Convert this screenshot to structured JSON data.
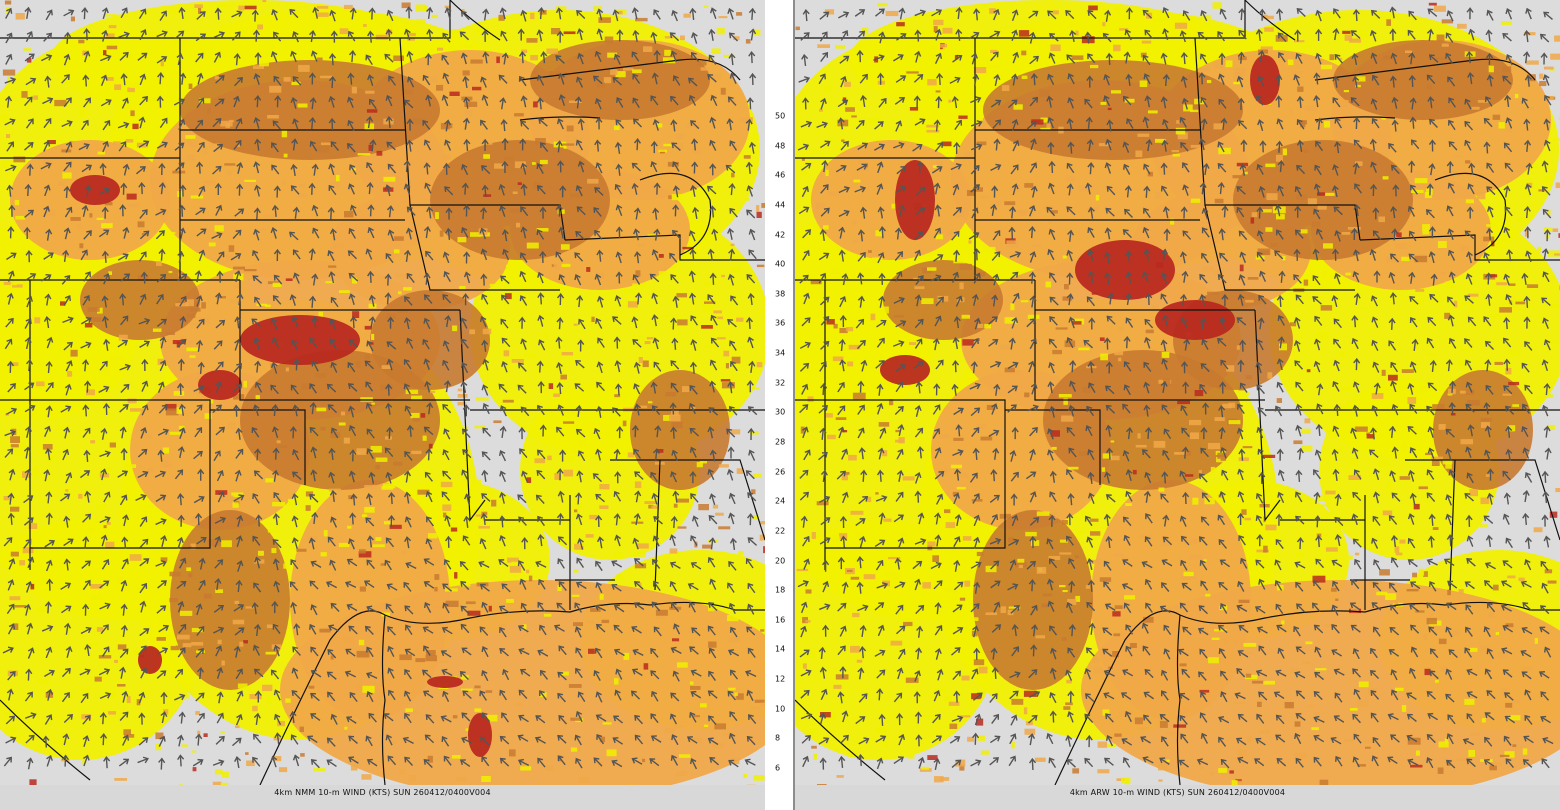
{
  "panels": [
    {
      "id": "nmm",
      "caption": "4km NMM 10-m WIND (KTS) SUN 260412/0400V004"
    },
    {
      "id": "arw",
      "caption": "4km ARW 10-m WIND (KTS) SUN 260412/0400V004"
    }
  ],
  "colorbar": {
    "ticks": [
      "50",
      "48",
      "46",
      "44",
      "42",
      "40",
      "38",
      "36",
      "34",
      "32",
      "30",
      "28",
      "26",
      "24",
      "22",
      "20",
      "18",
      "16",
      "14",
      "12",
      "10",
      "8",
      "6"
    ],
    "colors": [
      "#6a1f6a",
      "#8a2f8a",
      "#b04090",
      "#c8507a",
      "#d22050",
      "#e02828",
      "#c02020",
      "#a81818",
      "#b82020",
      "#c82828",
      "#d83030",
      "#e0302a",
      "#e84020",
      "#d04a20",
      "#c8601c",
      "#c07020",
      "#d08a2c",
      "#e0a040",
      "#d08630",
      "#c87a28",
      "#e8e800",
      "#c8c800",
      "#f0f0a0"
    ]
  },
  "legend": {
    "fills": {
      "calm": "#dcdcdc",
      "light": "#f0f000",
      "moderate": "#f0a848",
      "strong": "#c87a30",
      "gale": "#b82a20"
    },
    "arrow_color": "#555555",
    "boundary_color": "#111111"
  }
}
